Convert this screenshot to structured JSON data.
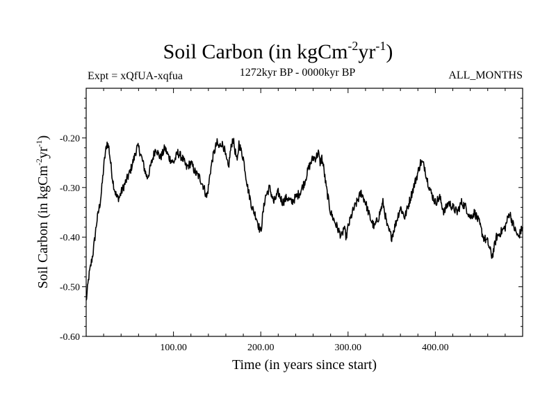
{
  "header": {
    "title_main": "Soil Carbon (in kgCm",
    "title_exp1": "-2",
    "title_mid": "yr",
    "title_exp2": "-1",
    "title_end": ")",
    "expt": "Expt = xQfUA-xqfua",
    "period": "1272kyr BP - 0000kyr BP",
    "months": "ALL_MONTHS"
  },
  "chart_data": {
    "type": "line",
    "xlabel": "Time (in years since start)",
    "ylabel_main": "Soil Carbon (in kgCm",
    "ylabel_exp1": "-2",
    "ylabel_mid": "yr",
    "ylabel_exp2": "-1",
    "ylabel_end": ")",
    "xlim": [
      0,
      500
    ],
    "ylim": [
      -0.6,
      -0.1
    ],
    "x_ticks": [
      100,
      200,
      300,
      400
    ],
    "x_tick_labels": [
      "100.00",
      "200.00",
      "300.00",
      "400.00"
    ],
    "y_ticks": [
      -0.6,
      -0.5,
      -0.4,
      -0.3,
      -0.2
    ],
    "y_tick_labels": [
      "-0.60",
      "-0.50",
      "-0.40",
      "-0.30",
      "-0.20"
    ],
    "grid": false,
    "series": [
      {
        "name": "Soil Carbon",
        "color": "#000000",
        "x": [
          0,
          3,
          5,
          8,
          10,
          12,
          14,
          16,
          18,
          20,
          22,
          24,
          26,
          28,
          30,
          32,
          35,
          38,
          40,
          45,
          50,
          55,
          58,
          60,
          62,
          65,
          68,
          70,
          72,
          75,
          78,
          80,
          82,
          85,
          88,
          90,
          95,
          100,
          105,
          110,
          115,
          120,
          125,
          130,
          135,
          138,
          140,
          142,
          145,
          148,
          150,
          152,
          155,
          158,
          160,
          163,
          165,
          168,
          170,
          173,
          175,
          178,
          180,
          185,
          190,
          195,
          198,
          200,
          202,
          205,
          210,
          215,
          220,
          225,
          230,
          235,
          240,
          245,
          250,
          255,
          260,
          263,
          266,
          268,
          270,
          272,
          275,
          280,
          285,
          290,
          293,
          295,
          298,
          300,
          305,
          310,
          315,
          320,
          325,
          330,
          335,
          340,
          345,
          350,
          355,
          360,
          365,
          370,
          375,
          380,
          383,
          385,
          388,
          390,
          395,
          400,
          405,
          410,
          415,
          420,
          425,
          430,
          435,
          440,
          445,
          450,
          455,
          460,
          465,
          470,
          475,
          480,
          485,
          490,
          495,
          500
        ],
        "values": [
          -0.53,
          -0.48,
          -0.46,
          -0.43,
          -0.4,
          -0.37,
          -0.35,
          -0.33,
          -0.3,
          -0.26,
          -0.23,
          -0.21,
          -0.22,
          -0.25,
          -0.28,
          -0.3,
          -0.32,
          -0.32,
          -0.31,
          -0.29,
          -0.27,
          -0.24,
          -0.22,
          -0.22,
          -0.23,
          -0.25,
          -0.27,
          -0.28,
          -0.27,
          -0.25,
          -0.23,
          -0.22,
          -0.23,
          -0.24,
          -0.23,
          -0.22,
          -0.24,
          -0.25,
          -0.23,
          -0.24,
          -0.26,
          -0.25,
          -0.27,
          -0.28,
          -0.3,
          -0.32,
          -0.3,
          -0.27,
          -0.24,
          -0.22,
          -0.21,
          -0.22,
          -0.21,
          -0.22,
          -0.24,
          -0.26,
          -0.23,
          -0.2,
          -0.22,
          -0.25,
          -0.21,
          -0.23,
          -0.24,
          -0.3,
          -0.34,
          -0.36,
          -0.38,
          -0.39,
          -0.36,
          -0.32,
          -0.3,
          -0.33,
          -0.31,
          -0.33,
          -0.32,
          -0.33,
          -0.32,
          -0.31,
          -0.29,
          -0.26,
          -0.24,
          -0.24,
          -0.23,
          -0.25,
          -0.24,
          -0.26,
          -0.3,
          -0.35,
          -0.37,
          -0.39,
          -0.4,
          -0.38,
          -0.4,
          -0.38,
          -0.35,
          -0.33,
          -0.31,
          -0.33,
          -0.36,
          -0.38,
          -0.36,
          -0.33,
          -0.38,
          -0.4,
          -0.37,
          -0.34,
          -0.36,
          -0.33,
          -0.3,
          -0.27,
          -0.25,
          -0.25,
          -0.26,
          -0.28,
          -0.31,
          -0.33,
          -0.32,
          -0.35,
          -0.33,
          -0.34,
          -0.35,
          -0.33,
          -0.34,
          -0.36,
          -0.35,
          -0.37,
          -0.4,
          -0.41,
          -0.44,
          -0.4,
          -0.39,
          -0.38,
          -0.35,
          -0.38,
          -0.4,
          -0.38
        ]
      }
    ]
  }
}
